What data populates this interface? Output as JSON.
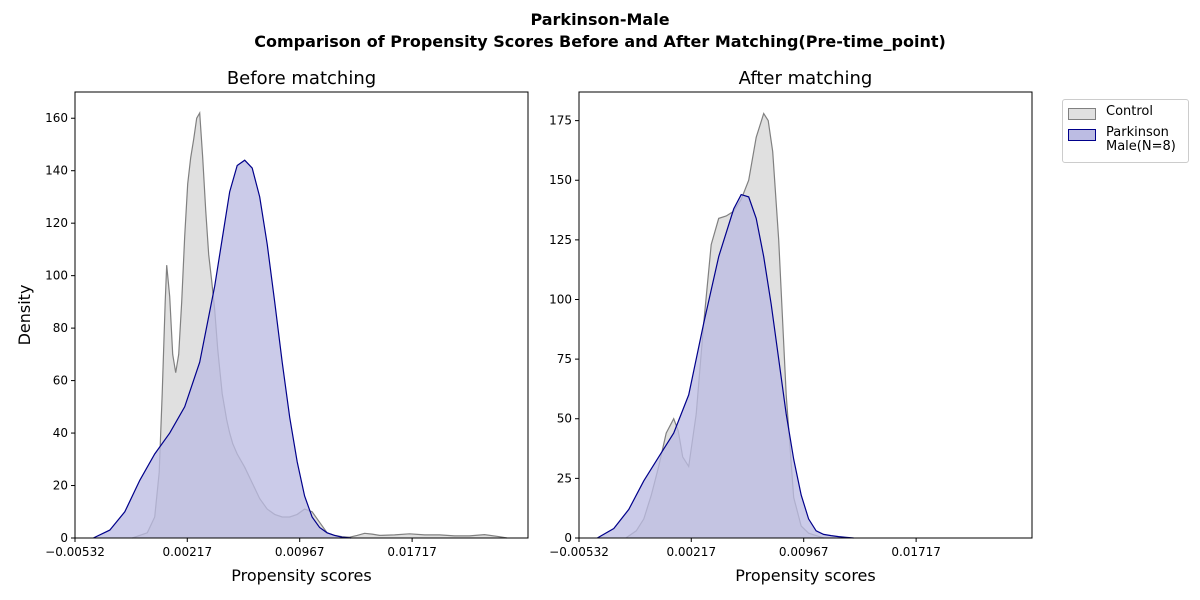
{
  "figure": {
    "suptitle_line1": "Parkinson-Male",
    "suptitle_line2": "Comparison of Propensity Scores Before and After Matching(Pre-time_point)"
  },
  "legend": {
    "control_label": "Control",
    "patient_label": "Parkinson\nMale(N=8)",
    "control_color": "#808080",
    "control_fill": "#e0e0e0",
    "patient_color": "#00008b",
    "patient_fill": "#bcbce3"
  },
  "chart_data": [
    {
      "type": "area",
      "title": "Before matching",
      "xlabel": "Propensity scores",
      "ylabel": "Density",
      "xlim": [
        -0.00532,
        0.0249
      ],
      "ylim": [
        0,
        170
      ],
      "xticks": [
        -0.00532,
        0.00217,
        0.00967,
        0.01717
      ],
      "xtick_labels": [
        "−0.00532",
        "0.00217",
        "0.00967",
        "0.01717"
      ],
      "yticks": [
        0,
        20,
        40,
        60,
        80,
        100,
        120,
        140,
        160
      ],
      "series": [
        {
          "name": "Control",
          "x": [
            -0.0015,
            -0.0005,
            0.0,
            0.0003,
            0.0005,
            0.0007,
            0.0008,
            0.001,
            0.0012,
            0.0014,
            0.0016,
            0.0018,
            0.002,
            0.0022,
            0.0024,
            0.0026,
            0.0028,
            0.003,
            0.0032,
            0.0034,
            0.0036,
            0.0038,
            0.004,
            0.0042,
            0.0045,
            0.0048,
            0.005,
            0.0052,
            0.0055,
            0.006,
            0.0065,
            0.007,
            0.0075,
            0.008,
            0.0085,
            0.009,
            0.0095,
            0.01,
            0.0105,
            0.011,
            0.0115,
            0.012,
            0.0125,
            0.013,
            0.0135,
            0.014,
            0.0145,
            0.015,
            0.016,
            0.017,
            0.018,
            0.019,
            0.02,
            0.021,
            0.022,
            0.023,
            0.0235
          ],
          "y": [
            0,
            2,
            8,
            25,
            55,
            90,
            104,
            92,
            70,
            63,
            70,
            90,
            115,
            135,
            145,
            152,
            160,
            162,
            145,
            125,
            108,
            98,
            87,
            72,
            55,
            45,
            40,
            36,
            32,
            27,
            21,
            15,
            11,
            9,
            8,
            8,
            9,
            11,
            10,
            6,
            2,
            1,
            0.5,
            0.3,
            1.0,
            1.8,
            1.5,
            1.0,
            1.2,
            1.6,
            1.2,
            1.2,
            0.8,
            0.8,
            1.3,
            0.5,
            0
          ],
          "color": "#808080",
          "fill": "#e0e0e0"
        },
        {
          "name": "Parkinson\nMale(N=8)",
          "x": [
            -0.0041,
            -0.003,
            -0.002,
            -0.001,
            0.0,
            0.001,
            0.002,
            0.003,
            0.004,
            0.0045,
            0.005,
            0.0055,
            0.006,
            0.0065,
            0.007,
            0.0075,
            0.008,
            0.0085,
            0.009,
            0.0095,
            0.01,
            0.0105,
            0.011,
            0.0115,
            0.012,
            0.0125,
            0.0131
          ],
          "y": [
            0,
            3,
            10,
            22,
            32,
            40,
            50,
            67,
            96,
            114,
            132,
            142,
            144,
            141,
            130,
            112,
            90,
            67,
            46,
            29,
            16,
            8,
            4,
            2,
            1,
            0.3,
            0
          ],
          "color": "#00008b",
          "fill": "#bcbce3"
        }
      ]
    },
    {
      "type": "area",
      "title": "After matching",
      "xlabel": "Propensity scores",
      "ylabel": "",
      "xlim": [
        -0.00532,
        0.0249
      ],
      "ylim": [
        0,
        187
      ],
      "xticks": [
        -0.00532,
        0.00217,
        0.00967,
        0.01717
      ],
      "xtick_labels": [
        "−0.00532",
        "0.00217",
        "0.00967",
        "0.01717"
      ],
      "yticks": [
        0,
        25,
        50,
        75,
        100,
        125,
        150,
        175
      ],
      "series": [
        {
          "name": "Control",
          "x": [
            -0.0022,
            -0.0015,
            -0.001,
            -0.0005,
            0.0,
            0.0005,
            0.001,
            0.0013,
            0.0016,
            0.002,
            0.0025,
            0.003,
            0.0035,
            0.004,
            0.0045,
            0.005,
            0.0055,
            0.006,
            0.0065,
            0.007,
            0.0073,
            0.0076,
            0.008,
            0.0085,
            0.009,
            0.0095,
            0.01,
            0.0105,
            0.011
          ],
          "y": [
            0,
            3,
            8,
            18,
            30,
            44,
            50,
            45,
            34,
            30,
            52,
            90,
            123,
            134,
            135,
            137,
            142,
            150,
            168,
            178,
            175,
            162,
            125,
            60,
            17,
            5,
            2,
            1,
            0
          ],
          "color": "#808080",
          "fill": "#e0e0e0"
        },
        {
          "name": "Parkinson\nMale(N=8)",
          "x": [
            -0.0041,
            -0.003,
            -0.002,
            -0.001,
            0.0,
            0.001,
            0.002,
            0.003,
            0.004,
            0.005,
            0.0055,
            0.006,
            0.0065,
            0.007,
            0.0075,
            0.008,
            0.0085,
            0.009,
            0.0095,
            0.01,
            0.0105,
            0.011,
            0.0115,
            0.012,
            0.0125,
            0.013
          ],
          "y": [
            0,
            4,
            12,
            24,
            34,
            44,
            60,
            90,
            118,
            138,
            144,
            143,
            134,
            118,
            98,
            75,
            52,
            33,
            18,
            8,
            3,
            1.5,
            1,
            0.6,
            0.3,
            0
          ],
          "color": "#00008b",
          "fill": "#bcbce3"
        }
      ]
    }
  ]
}
